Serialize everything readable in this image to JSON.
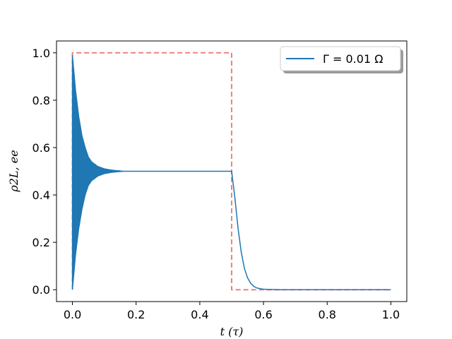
{
  "chart_data": {
    "type": "line",
    "title": "",
    "xlabel": "t (τ)",
    "ylabel": "ρ2L, ee",
    "xlim": [
      -0.05,
      1.05
    ],
    "ylim": [
      -0.05,
      1.05
    ],
    "xticks": [
      0.0,
      0.2,
      0.4,
      0.6,
      0.8,
      1.0
    ],
    "xtick_labels": [
      "0.0",
      "0.2",
      "0.4",
      "0.6",
      "0.8",
      "1.0"
    ],
    "yticks": [
      0.0,
      0.2,
      0.4,
      0.6,
      0.8,
      1.0
    ],
    "ytick_labels": [
      "0.0",
      "0.2",
      "0.4",
      "0.6",
      "0.8",
      "1.0"
    ],
    "grid": false,
    "legend": {
      "position": "top-right",
      "entries": [
        "Γ = 0.01 Ω"
      ]
    },
    "series": [
      {
        "name": "Γ = 0.01 Ω",
        "color": "#1f77b4",
        "style": "solid",
        "oscillation_envelope": {
          "t": [
            0.0,
            0.01,
            0.02,
            0.03,
            0.04,
            0.05,
            0.06,
            0.08,
            0.1,
            0.12,
            0.14,
            0.16
          ],
          "upper": [
            0.99,
            0.84,
            0.73,
            0.65,
            0.6,
            0.56,
            0.54,
            0.52,
            0.51,
            0.505,
            0.502,
            0.5
          ],
          "lower": [
            0.0,
            0.15,
            0.26,
            0.34,
            0.4,
            0.44,
            0.46,
            0.48,
            0.49,
            0.495,
            0.498,
            0.5
          ]
        },
        "x": [
          0.16,
          0.2,
          0.3,
          0.4,
          0.5,
          0.51,
          0.52,
          0.53,
          0.54,
          0.55,
          0.56,
          0.57,
          0.58,
          0.6,
          0.65,
          0.7,
          0.8,
          0.9,
          1.0
        ],
        "y": [
          0.5,
          0.5,
          0.5,
          0.5,
          0.5,
          0.39,
          0.26,
          0.16,
          0.09,
          0.05,
          0.027,
          0.014,
          0.007,
          0.002,
          0.0,
          0.0,
          0.0,
          0.0,
          0.0
        ]
      },
      {
        "name": "",
        "color": "#f08080",
        "style": "dashed",
        "x": [
          0.0,
          0.0,
          0.5,
          0.5,
          1.0
        ],
        "y": [
          0.0,
          1.0,
          1.0,
          0.0,
          0.0
        ]
      }
    ]
  }
}
